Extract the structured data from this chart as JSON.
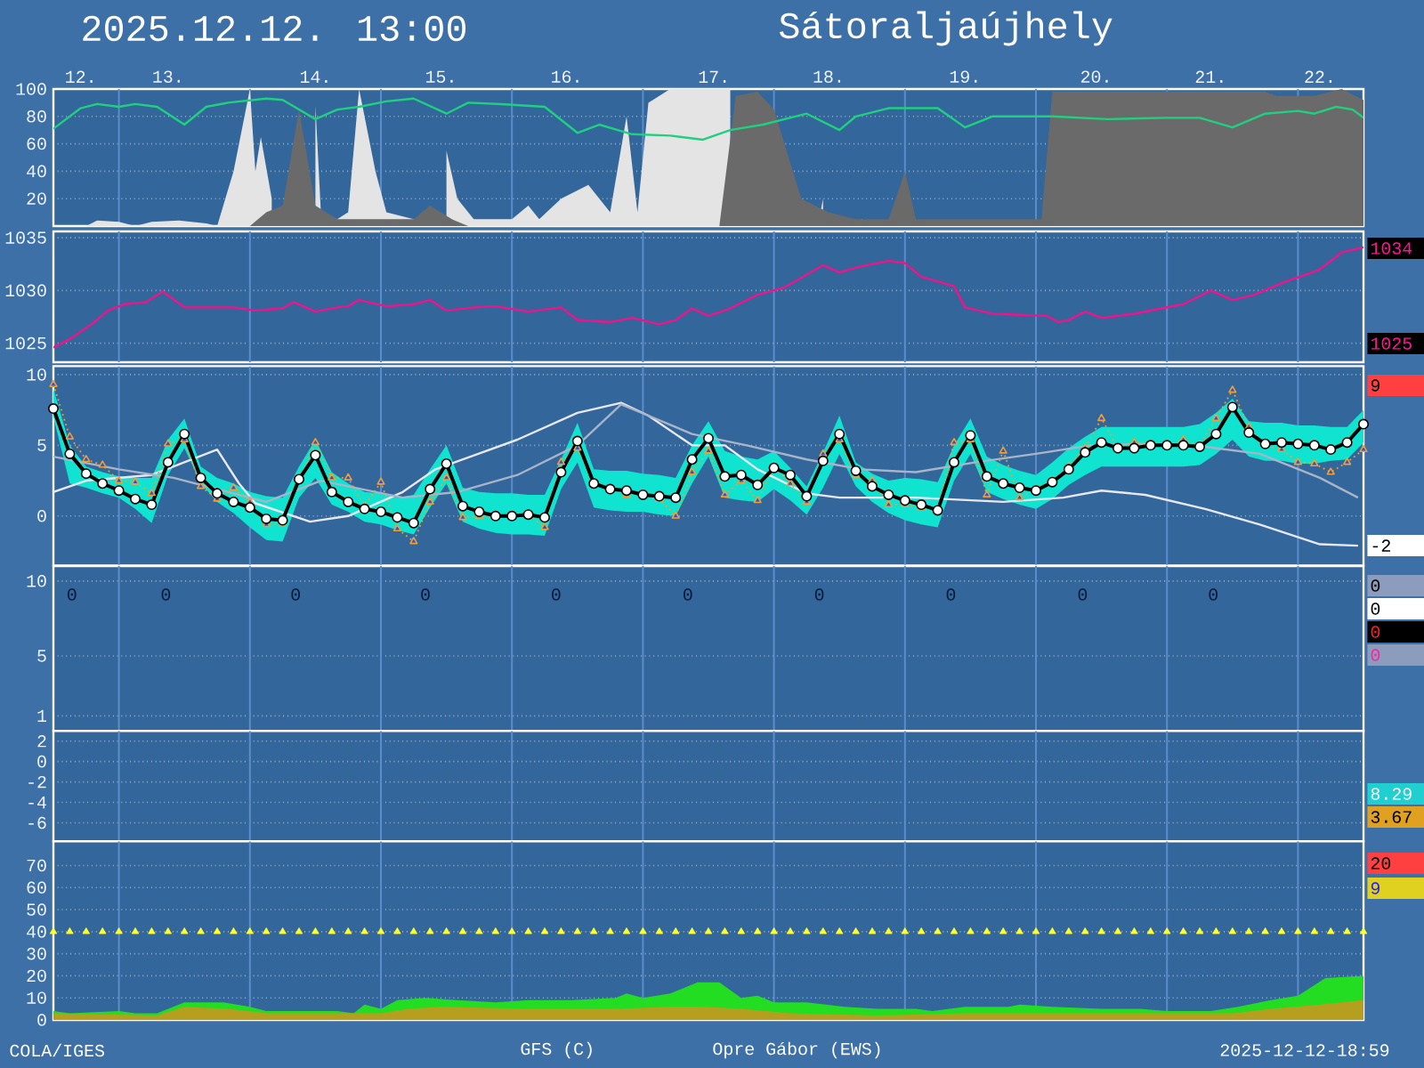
{
  "chart_data": [
    {
      "type": "line",
      "title": "2025.12.12. 13:00",
      "subtitle": "Sátoraljaújhely",
      "annotations": [
        "COLA/IGES",
        "GFS (C)",
        "Opre Gábor (EWS)",
        "2025-12-12-18:59"
      ],
      "xlim": [
        "2025-12-12T12:00",
        "2025-12-22T12:00"
      ],
      "xticks": [
        {
          "value": "2025-12-12T17:00",
          "label": "12."
        },
        {
          "value": "2025-12-13T09:00",
          "label": "13."
        },
        {
          "value": "2025-12-14T12:00",
          "label": "14."
        },
        {
          "value": "2025-12-15T11:00",
          "label": "15."
        },
        {
          "value": "2025-12-16T10:00",
          "label": "16."
        },
        {
          "value": "2025-12-17T13:00",
          "label": "17."
        },
        {
          "value": "2025-12-18T10:00",
          "label": "18."
        },
        {
          "value": "2025-12-19T11:00",
          "label": "19."
        },
        {
          "value": "2025-12-20T11:00",
          "label": "20."
        },
        {
          "value": "2025-12-21T08:00",
          "label": "21."
        },
        {
          "value": "2025-12-22T04:00",
          "label": "22."
        }
      ],
      "ylim": [
        0,
        100
      ],
      "yticks": [
        20,
        40,
        60,
        80,
        100
      ],
      "grid": "y",
      "ref_lines": [
        {
          "axis": "x",
          "value": "2025-12-13T00:00"
        },
        {
          "axis": "x",
          "value": "2025-12-14T00:00"
        },
        {
          "axis": "x",
          "value": "2025-12-15T00:00"
        },
        {
          "axis": "x",
          "value": "2025-12-16T00:00"
        },
        {
          "axis": "x",
          "value": "2025-12-17T00:00"
        },
        {
          "axis": "x",
          "value": "2025-12-18T00:00"
        },
        {
          "axis": "x",
          "value": "2025-12-19T00:00"
        },
        {
          "axis": "x",
          "value": "2025-12-20T00:00"
        },
        {
          "axis": "x",
          "value": "2025-12-21T00:00"
        },
        {
          "axis": "x",
          "value": "2025-12-22T00:00"
        }
      ],
      "series": [
        {
          "type": "area",
          "color": "#E4E4E4",
          "x": [
            "2025-12-12T12:00",
            "2025-12-12T18:00",
            "2025-12-12T20:00",
            "2025-12-13T00:00",
            "2025-12-13T03:00",
            "2025-12-13T06:00",
            "2025-12-13T11:00",
            "2025-12-13T16:00",
            "2025-12-13T18:00",
            "2025-12-13T21:00",
            "2025-12-14T00:00",
            "2025-12-14T01:00",
            "2025-12-14T02:00",
            "2025-12-14T04:00",
            "2025-12-14T06:00",
            "2025-12-14T09:00",
            "2025-12-14T12:00",
            "2025-12-14T13:00",
            "2025-12-14T16:00",
            "2025-12-14T18:00",
            "2025-12-14T20:00",
            "2025-12-14T23:00",
            "2025-12-15T01:00",
            "2025-12-15T06:00",
            "2025-12-15T09:00",
            "2025-12-15T12:00",
            "2025-12-15T14:00",
            "2025-12-15T17:00",
            "2025-12-16T00:00",
            "2025-12-16T03:00",
            "2025-12-16T05:00",
            "2025-12-16T09:00",
            "2025-12-16T14:00",
            "2025-12-16T18:00",
            "2025-12-16T21:00",
            "2025-12-16T23:00",
            "2025-12-17T01:00",
            "2025-12-17T05:00",
            "2025-12-17T16:00",
            "2025-12-17T17:00",
            "2025-12-17T22:00",
            "2025-12-18T08:00",
            "2025-12-18T09:00",
            "2025-12-18T11:00",
            "2025-12-18T16:00",
            "2025-12-18T19:00",
            "2025-12-22T12:00"
          ],
          "values": [
            0,
            0,
            4,
            3,
            0,
            3,
            4,
            2,
            0,
            40,
            100,
            40,
            65,
            20,
            null,
            null,
            88,
            10,
            5,
            10,
            100,
            40,
            10,
            5,
            null,
            55,
            20,
            5,
            5,
            15,
            5,
            20,
            30,
            10,
            80,
            10,
            90,
            100,
            100,
            null,
            0,
            0,
            20,
            null,
            5,
            0,
            0
          ]
        },
        {
          "type": "area",
          "color": "#6A6A6A",
          "x": [
            "2025-12-14T00:00",
            "2025-12-14T03:00",
            "2025-12-14T06:00",
            "2025-12-14T09:00",
            "2025-12-14T12:00",
            "2025-12-14T16:00",
            "2025-12-15T06:00",
            "2025-12-15T09:00",
            "2025-12-15T13:00",
            "2025-12-15T16:00",
            "2025-12-16T12:00",
            "2025-12-17T14:00",
            "2025-12-17T17:00",
            "2025-12-17T21:00",
            "2025-12-18T00:00",
            "2025-12-18T05:00",
            "2025-12-18T10:00",
            "2025-12-18T15:00",
            "2025-12-18T21:00",
            "2025-12-19T00:00",
            "2025-12-19T02:00",
            "2025-12-20T01:00",
            "2025-12-20T03:00",
            "2025-12-21T18:00",
            "2025-12-21T20:00",
            "2025-12-22T03:00",
            "2025-12-22T08:00",
            "2025-12-22T12:00"
          ],
          "values": [
            0,
            10,
            15,
            85,
            15,
            5,
            5,
            15,
            5,
            0,
            null,
            0,
            95,
            98,
            85,
            20,
            10,
            5,
            5,
            40,
            5,
            5,
            98,
            98,
            95,
            95,
            100,
            92
          ]
        },
        {
          "type": "line",
          "color": "#20D080",
          "x": [
            "2025-12-12T12:00",
            "2025-12-12T17:00",
            "2025-12-12T20:00",
            "2025-12-13T00:00",
            "2025-12-13T03:00",
            "2025-12-13T07:00",
            "2025-12-13T12:00",
            "2025-12-13T16:00",
            "2025-12-13T20:00",
            "2025-12-14T03:00",
            "2025-12-14T06:00",
            "2025-12-14T12:00",
            "2025-12-14T16:00",
            "2025-12-14T20:00",
            "2025-12-15T01:00",
            "2025-12-15T06:00",
            "2025-12-15T12:00",
            "2025-12-15T16:00",
            "2025-12-15T22:00",
            "2025-12-16T06:00",
            "2025-12-16T12:00",
            "2025-12-16T16:00",
            "2025-12-16T22:00",
            "2025-12-17T05:00",
            "2025-12-17T11:00",
            "2025-12-17T16:00",
            "2025-12-17T22:00",
            "2025-12-18T06:00",
            "2025-12-18T12:00",
            "2025-12-18T15:00",
            "2025-12-18T21:00",
            "2025-12-19T06:00",
            "2025-12-19T11:00",
            "2025-12-19T16:00",
            "2025-12-20T03:00",
            "2025-12-20T13:00",
            "2025-12-21T00:00",
            "2025-12-21T06:00",
            "2025-12-21T12:00",
            "2025-12-21T18:00",
            "2025-12-22T00:00",
            "2025-12-22T03:00",
            "2025-12-22T07:00",
            "2025-12-22T10:00",
            "2025-12-22T12:00"
          ],
          "values": [
            71,
            86,
            89,
            87,
            89,
            87,
            74,
            87,
            90,
            93,
            92,
            78,
            85,
            87,
            91,
            93,
            82,
            90,
            89,
            87,
            68,
            74,
            67,
            66,
            63,
            70,
            74,
            82,
            70,
            80,
            86,
            86,
            72,
            80,
            80,
            78,
            79,
            79,
            72,
            82,
            84,
            82,
            87,
            85,
            79
          ]
        }
      ]
    },
    {
      "type": "line",
      "xlim": [
        "2025-12-12T12:00",
        "2025-12-22T12:00"
      ],
      "tick_labels": "y",
      "ylim": [
        1023.2,
        1035.6
      ],
      "yticks": [
        1025,
        1030,
        1035
      ],
      "grid": "y",
      "ref_lines": [
        {
          "axis": "x",
          "value": "2025-12-13T00:00"
        },
        {
          "axis": "x",
          "value": "2025-12-14T00:00"
        },
        {
          "axis": "x",
          "value": "2025-12-15T00:00"
        },
        {
          "axis": "x",
          "value": "2025-12-16T00:00"
        },
        {
          "axis": "x",
          "value": "2025-12-17T00:00"
        },
        {
          "axis": "x",
          "value": "2025-12-18T00:00"
        },
        {
          "axis": "x",
          "value": "2025-12-19T00:00"
        },
        {
          "axis": "x",
          "value": "2025-12-20T00:00"
        },
        {
          "axis": "x",
          "value": "2025-12-21T00:00"
        },
        {
          "axis": "x",
          "value": "2025-12-22T00:00"
        }
      ],
      "annotations": [
        "1034",
        "1025"
      ],
      "series": [
        {
          "color": "#F0148C",
          "x": [
            "2025-12-12T12:00",
            "2025-12-12T15:00",
            "2025-12-12T19:00",
            "2025-12-12T22:00",
            "2025-12-13T01:00",
            "2025-12-13T05:00",
            "2025-12-13T08:00",
            "2025-12-13T12:00",
            "2025-12-13T21:00",
            "2025-12-14T01:00",
            "2025-12-14T06:00",
            "2025-12-14T08:00",
            "2025-12-14T12:00",
            "2025-12-14T16:00",
            "2025-12-14T18:00",
            "2025-12-14T20:00",
            "2025-12-15T01:00",
            "2025-12-15T06:00",
            "2025-12-15T09:00",
            "2025-12-15T12:00",
            "2025-12-15T17:00",
            "2025-12-15T21:00",
            "2025-12-16T03:00",
            "2025-12-16T09:00",
            "2025-12-16T12:00",
            "2025-12-16T18:00",
            "2025-12-16T22:00",
            "2025-12-17T03:00",
            "2025-12-17T06:00",
            "2025-12-17T09:00",
            "2025-12-17T12:00",
            "2025-12-17T16:00",
            "2025-12-17T21:00",
            "2025-12-18T02:00",
            "2025-12-18T09:00",
            "2025-12-18T12:00",
            "2025-12-18T16:00",
            "2025-12-18T21:00",
            "2025-12-19T00:00",
            "2025-12-19T03:00",
            "2025-12-19T09:00",
            "2025-12-19T11:00",
            "2025-12-19T16:00",
            "2025-12-19T21:00",
            "2025-12-20T02:00",
            "2025-12-20T04:00",
            "2025-12-20T06:00",
            "2025-12-20T09:00",
            "2025-12-20T12:00",
            "2025-12-20T18:00",
            "2025-12-20T23:00",
            "2025-12-21T03:00",
            "2025-12-21T08:00",
            "2025-12-21T12:00",
            "2025-12-21T16:00",
            "2025-12-21T22:00",
            "2025-12-22T02:00",
            "2025-12-22T04:00",
            "2025-12-22T08:00",
            "2025-12-22T12:00"
          ],
          "values": [
            1024.6,
            1025.4,
            1026.8,
            1028.1,
            1028.7,
            1028.9,
            1029.9,
            1028.4,
            1028.4,
            1028.1,
            1028.3,
            1028.9,
            1028.0,
            1028.4,
            1028.5,
            1029.1,
            1028.5,
            1028.7,
            1029.1,
            1028.1,
            1028.4,
            1028.5,
            1028.0,
            1028.4,
            1027.2,
            1027.0,
            1027.4,
            1026.8,
            1027.2,
            1028.3,
            1027.6,
            1028.3,
            1029.6,
            1030.3,
            1032.4,
            1031.7,
            1032.3,
            1032.8,
            1032.6,
            1031.3,
            1030.4,
            1028.4,
            1027.8,
            1027.7,
            1027.6,
            1027.0,
            1027.2,
            1028.0,
            1027.4,
            1027.8,
            1028.3,
            1028.7,
            1030.0,
            1029.1,
            1029.6,
            1030.9,
            1031.6,
            1032.0,
            1033.6,
            1034.1
          ]
        }
      ]
    },
    {
      "type": "line",
      "xlim": [
        "2025-12-12T12:00",
        "2025-12-22T12:00"
      ],
      "tick_labels": "y",
      "ylim": [
        -3.5,
        10.6
      ],
      "yticks": [
        0,
        5,
        10
      ],
      "grid": "y",
      "ref_lines": [
        {
          "axis": "x",
          "value": "2025-12-13T00:00"
        },
        {
          "axis": "x",
          "value": "2025-12-14T00:00"
        },
        {
          "axis": "x",
          "value": "2025-12-15T00:00"
        },
        {
          "axis": "x",
          "value": "2025-12-16T00:00"
        },
        {
          "axis": "x",
          "value": "2025-12-17T00:00"
        },
        {
          "axis": "x",
          "value": "2025-12-18T00:00"
        },
        {
          "axis": "x",
          "value": "2025-12-19T00:00"
        },
        {
          "axis": "x",
          "value": "2025-12-20T00:00"
        },
        {
          "axis": "x",
          "value": "2025-12-21T00:00"
        },
        {
          "axis": "x",
          "value": "2025-12-22T00:00"
        }
      ],
      "annotations": [
        "9",
        "-2"
      ],
      "x": [
        "2025-12-12T12:00",
        "2025-12-12T15:00",
        "2025-12-12T18:00",
        "2025-12-12T21:00",
        "2025-12-13T00:00",
        "2025-12-13T03:00",
        "2025-12-13T06:00",
        "2025-12-13T09:00",
        "2025-12-13T12:00",
        "2025-12-13T15:00",
        "2025-12-13T18:00",
        "2025-12-13T21:00",
        "2025-12-14T00:00",
        "2025-12-14T03:00",
        "2025-12-14T06:00",
        "2025-12-14T09:00",
        "2025-12-14T12:00",
        "2025-12-14T15:00",
        "2025-12-14T18:00",
        "2025-12-14T21:00",
        "2025-12-15T00:00",
        "2025-12-15T03:00",
        "2025-12-15T06:00",
        "2025-12-15T09:00",
        "2025-12-15T12:00",
        "2025-12-15T15:00",
        "2025-12-15T18:00",
        "2025-12-15T21:00",
        "2025-12-16T00:00",
        "2025-12-16T03:00",
        "2025-12-16T06:00",
        "2025-12-16T09:00",
        "2025-12-16T12:00",
        "2025-12-16T15:00",
        "2025-12-16T18:00",
        "2025-12-16T21:00",
        "2025-12-17T00:00",
        "2025-12-17T03:00",
        "2025-12-17T06:00",
        "2025-12-17T09:00",
        "2025-12-17T12:00",
        "2025-12-17T15:00",
        "2025-12-17T18:00",
        "2025-12-17T21:00",
        "2025-12-18T00:00",
        "2025-12-18T03:00",
        "2025-12-18T06:00",
        "2025-12-18T09:00",
        "2025-12-18T12:00",
        "2025-12-18T15:00",
        "2025-12-18T18:00",
        "2025-12-18T21:00",
        "2025-12-19T00:00",
        "2025-12-19T03:00",
        "2025-12-19T06:00",
        "2025-12-19T09:00",
        "2025-12-19T12:00",
        "2025-12-19T15:00",
        "2025-12-19T18:00",
        "2025-12-19T21:00",
        "2025-12-20T00:00",
        "2025-12-20T03:00",
        "2025-12-20T06:00",
        "2025-12-20T09:00",
        "2025-12-20T12:00",
        "2025-12-20T15:00",
        "2025-12-20T18:00",
        "2025-12-20T21:00",
        "2025-12-21T00:00",
        "2025-12-21T03:00",
        "2025-12-21T06:00",
        "2025-12-21T09:00",
        "2025-12-21T12:00",
        "2025-12-21T15:00",
        "2025-12-21T18:00",
        "2025-12-21T21:00",
        "2025-12-22T00:00",
        "2025-12-22T03:00",
        "2025-12-22T06:00",
        "2025-12-22T09:00",
        "2025-12-22T12:00"
      ],
      "series": [
        {
          "color": "#E8E8F0",
          "x": [
            "2025-12-12T12:00",
            "2025-12-12T18:00",
            "2025-12-13T06:00",
            "2025-12-13T18:00",
            "2025-12-13T22:00",
            "2025-12-14T01:00",
            "2025-12-14T11:00",
            "2025-12-14T18:00",
            "2025-12-15T04:00",
            "2025-12-15T10:00",
            "2025-12-16T01:00",
            "2025-12-16T12:00",
            "2025-12-16T20:00",
            "2025-12-17T01:00",
            "2025-12-17T09:00",
            "2025-12-17T15:00",
            "2025-12-17T21:00",
            "2025-12-18T06:00",
            "2025-12-18T12:00",
            "2025-12-19T02:00",
            "2025-12-19T18:00",
            "2025-12-20T05:00",
            "2025-12-20T12:00",
            "2025-12-20T20:00",
            "2025-12-21T07:00",
            "2025-12-21T17:00",
            "2025-12-22T04:00",
            "2025-12-22T11:00"
          ],
          "values": [
            1.7,
            2.5,
            2.9,
            4.7,
            2.3,
            0.9,
            -0.4,
            0.0,
            1.7,
            3.3,
            5.4,
            7.3,
            8.0,
            7.1,
            5.0,
            5.0,
            3.3,
            1.6,
            1.3,
            1.3,
            1.0,
            1.3,
            1.8,
            1.5,
            0.5,
            -0.6,
            -2.0,
            -2.1
          ]
        },
        {
          "color": "#A8B4C8",
          "x": [
            "2025-12-12T12:00",
            "2025-12-13T00:00",
            "2025-12-13T10:00",
            "2025-12-14T03:00",
            "2025-12-14T13:00",
            "2025-12-15T04:00",
            "2025-12-15T14:00",
            "2025-12-16T01:00",
            "2025-12-16T12:00",
            "2025-12-16T20:00",
            "2025-12-17T01:00",
            "2025-12-17T09:00",
            "2025-12-17T19:00",
            "2025-12-18T06:00",
            "2025-12-18T16:00",
            "2025-12-19T02:00",
            "2025-12-19T13:00",
            "2025-12-20T00:00",
            "2025-12-20T10:00",
            "2025-12-20T20:00",
            "2025-12-21T07:00",
            "2025-12-21T17:00",
            "2025-12-22T04:00",
            "2025-12-22T11:00"
          ],
          "values": [
            4.2,
            3.3,
            2.7,
            1.0,
            2.5,
            1.3,
            1.7,
            2.9,
            5.0,
            7.9,
            7.1,
            5.8,
            5.0,
            4.0,
            3.3,
            3.1,
            3.8,
            4.4,
            5.0,
            5.1,
            4.9,
            4.4,
            2.7,
            1.3
          ]
        },
        {
          "color": "#F0A030",
          "marker": "triangle",
          "line_style": "dotted",
          "values": [
            9.3,
            5.6,
            4.0,
            3.6,
            2.5,
            2.4,
            1.6,
            5.1,
            5.4,
            2.1,
            1.2,
            2.0,
            1.0,
            -0.6,
            -0.5,
            2.6,
            5.2,
            2.7,
            2.7,
            0.7,
            2.4,
            -0.9,
            -1.8,
            1.0,
            2.7,
            -0.1,
            0.0,
            0.0,
            0.1,
            0.1,
            -0.8,
            3.8,
            4.8,
            2.2,
            2.0,
            1.5,
            1.6,
            1.2,
            0.0,
            3.1,
            4.6,
            1.5,
            2.5,
            1.1,
            3.5,
            2.3,
            1.0,
            4.4,
            5.4,
            2.9,
            2.5,
            0.8,
            0.8,
            0.6,
            0.5,
            5.2,
            5.4,
            1.5,
            4.6,
            1.3,
            1.9,
            2.5,
            3.5,
            4.8,
            6.9,
            4.8,
            5.2,
            5.1,
            5.0,
            5.4,
            5.0,
            6.9,
            8.9,
            6.3,
            5.0,
            4.7,
            3.8,
            3.7,
            3.1,
            3.8,
            4.7
          ]
        },
        {
          "color": "#000000",
          "marker": "circle",
          "values": [
            7.6,
            4.4,
            3.0,
            2.3,
            1.8,
            1.2,
            0.8,
            3.8,
            5.8,
            2.7,
            1.6,
            1.0,
            0.6,
            -0.2,
            -0.3,
            2.6,
            4.3,
            1.7,
            1.0,
            0.5,
            0.3,
            -0.1,
            -0.5,
            1.9,
            3.7,
            0.7,
            0.3,
            0.0,
            0.0,
            0.1,
            -0.1,
            3.1,
            5.3,
            2.3,
            1.9,
            1.8,
            1.5,
            1.4,
            1.3,
            4.0,
            5.5,
            2.8,
            2.9,
            2.2,
            3.4,
            2.9,
            1.4,
            3.9,
            5.8,
            3.2,
            2.1,
            1.5,
            1.1,
            0.8,
            0.4,
            3.8,
            5.7,
            2.8,
            2.3,
            2.0,
            1.8,
            2.4,
            3.3,
            4.5,
            5.2,
            4.8,
            4.8,
            5.0,
            5.0,
            5.0,
            4.9,
            5.8,
            7.7,
            5.9,
            5.1,
            5.2,
            5.1,
            5.0,
            4.7,
            5.2,
            6.5
          ],
          "lower": [
            7.0,
            2.3,
            2.0,
            1.6,
            1.3,
            0.5,
            -0.5,
            2.9,
            4.8,
            2.3,
            1.0,
            0.2,
            -0.8,
            -1.7,
            -1.8,
            1.3,
            2.7,
            0.8,
            0.3,
            -0.4,
            -0.6,
            -1.0,
            -1.3,
            0.6,
            2.3,
            -0.4,
            -0.9,
            -1.2,
            -1.3,
            -1.3,
            -1.4,
            1.9,
            3.8,
            0.6,
            0.4,
            0.3,
            0.3,
            0.1,
            0.0,
            2.3,
            4.2,
            1.3,
            1.1,
            1.0,
            1.9,
            1.1,
            0.1,
            2.0,
            4.4,
            2.1,
            1.0,
            0.2,
            -0.3,
            -0.6,
            -0.8,
            2.5,
            4.4,
            1.7,
            1.2,
            0.8,
            0.5,
            1.2,
            2.2,
            2.9,
            3.5,
            3.5,
            3.5,
            3.5,
            3.5,
            3.5,
            3.6,
            4.4,
            5.4,
            4.2,
            3.9,
            3.9,
            3.7,
            3.7,
            3.9,
            4.0,
            5.2
          ],
          "upper": [
            9.0,
            5.0,
            3.5,
            3.1,
            2.8,
            2.7,
            2.7,
            5.4,
            6.9,
            3.5,
            2.7,
            2.3,
            1.7,
            1.4,
            1.3,
            3.5,
            5.4,
            3.1,
            2.3,
            1.7,
            1.6,
            1.3,
            1.5,
            3.3,
            5.0,
            2.0,
            1.7,
            1.6,
            1.6,
            1.5,
            1.5,
            4.0,
            6.6,
            3.3,
            3.2,
            3.2,
            3.0,
            2.9,
            2.7,
            5.0,
            6.7,
            4.6,
            4.2,
            4.0,
            4.6,
            3.4,
            2.1,
            4.5,
            7.1,
            3.8,
            3.0,
            2.5,
            2.7,
            2.6,
            2.4,
            5.0,
            6.9,
            4.2,
            3.6,
            3.2,
            2.9,
            3.8,
            4.8,
            5.6,
            6.3,
            6.3,
            6.3,
            6.3,
            6.3,
            6.3,
            6.5,
            7.3,
            8.3,
            6.7,
            6.6,
            6.6,
            6.4,
            6.4,
            6.3,
            6.3,
            7.5
          ]
        }
      ]
    },
    {
      "type": "bar",
      "xlim": [
        "2025-12-12T12:00",
        "2025-12-22T12:00"
      ],
      "tick_labels": "y",
      "ylim": [
        0,
        11
      ],
      "yticks": [
        1,
        5,
        10
      ],
      "grid": "y",
      "ref_lines": [
        {
          "axis": "x",
          "value": "2025-12-13T00:00"
        },
        {
          "axis": "x",
          "value": "2025-12-14T00:00"
        },
        {
          "axis": "x",
          "value": "2025-12-15T00:00"
        },
        {
          "axis": "x",
          "value": "2025-12-16T00:00"
        },
        {
          "axis": "x",
          "value": "2025-12-17T00:00"
        },
        {
          "axis": "x",
          "value": "2025-12-18T00:00"
        },
        {
          "axis": "x",
          "value": "2025-12-19T00:00"
        },
        {
          "axis": "x",
          "value": "2025-12-20T00:00"
        },
        {
          "axis": "x",
          "value": "2025-12-21T00:00"
        },
        {
          "axis": "x",
          "value": "2025-12-22T00:00"
        }
      ],
      "annotations": [
        "0",
        "0",
        "0",
        "0",
        "0",
        "0",
        "0",
        "0",
        "0",
        "0",
        "0",
        "0",
        "0",
        "0"
      ]
    },
    {
      "type": "line",
      "xlim": [
        "2025-12-12T12:00",
        "2025-12-22T12:00"
      ],
      "tick_labels": "y",
      "ylim": [
        -7.8,
        3
      ],
      "yticks": [
        -6,
        -4,
        -2,
        0,
        2
      ],
      "grid": "y",
      "ref_lines": [
        {
          "axis": "x",
          "value": "2025-12-13T00:00"
        },
        {
          "axis": "x",
          "value": "2025-12-14T00:00"
        },
        {
          "axis": "x",
          "value": "2025-12-15T00:00"
        },
        {
          "axis": "x",
          "value": "2025-12-16T00:00"
        },
        {
          "axis": "x",
          "value": "2025-12-17T00:00"
        },
        {
          "axis": "x",
          "value": "2025-12-18T00:00"
        },
        {
          "axis": "x",
          "value": "2025-12-19T00:00"
        },
        {
          "axis": "x",
          "value": "2025-12-20T00:00"
        },
        {
          "axis": "x",
          "value": "2025-12-21T00:00"
        },
        {
          "axis": "x",
          "value": "2025-12-22T00:00"
        }
      ],
      "annotations": [
        "8.29",
        "3.67"
      ]
    },
    {
      "type": "area",
      "xlim": [
        "2025-12-12T12:00",
        "2025-12-22T12:00"
      ],
      "tick_labels": "y",
      "ylim": [
        0,
        81
      ],
      "yticks": [
        0,
        10,
        20,
        30,
        40,
        50,
        60,
        70
      ],
      "grid": "y",
      "ref_lines": [
        {
          "axis": "x",
          "value": "2025-12-13T00:00"
        },
        {
          "axis": "x",
          "value": "2025-12-14T00:00"
        },
        {
          "axis": "x",
          "value": "2025-12-15T00:00"
        },
        {
          "axis": "x",
          "value": "2025-12-16T00:00"
        },
        {
          "axis": "x",
          "value": "2025-12-17T00:00"
        },
        {
          "axis": "x",
          "value": "2025-12-18T00:00"
        },
        {
          "axis": "x",
          "value": "2025-12-19T00:00"
        },
        {
          "axis": "x",
          "value": "2025-12-20T00:00"
        },
        {
          "axis": "x",
          "value": "2025-12-21T00:00"
        },
        {
          "axis": "x",
          "value": "2025-12-22T00:00"
        }
      ],
      "annotations": [
        "20",
        "9"
      ],
      "x": [
        "2025-12-12T12:00",
        "2025-12-12T15:00",
        "2025-12-12T18:00",
        "2025-12-12T21:00",
        "2025-12-13T00:00",
        "2025-12-13T03:00",
        "2025-12-13T06:00",
        "2025-12-13T09:00",
        "2025-12-13T12:00",
        "2025-12-13T15:00",
        "2025-12-13T18:00",
        "2025-12-13T21:00",
        "2025-12-14T00:00",
        "2025-12-14T03:00",
        "2025-12-14T06:00",
        "2025-12-14T09:00",
        "2025-12-14T12:00",
        "2025-12-14T15:00",
        "2025-12-14T18:00",
        "2025-12-14T21:00",
        "2025-12-15T00:00",
        "2025-12-15T03:00",
        "2025-12-15T06:00",
        "2025-12-15T09:00",
        "2025-12-15T12:00",
        "2025-12-15T15:00",
        "2025-12-15T18:00",
        "2025-12-15T21:00",
        "2025-12-16T00:00",
        "2025-12-16T03:00",
        "2025-12-16T06:00",
        "2025-12-16T09:00",
        "2025-12-16T12:00",
        "2025-12-16T15:00",
        "2025-12-16T18:00",
        "2025-12-16T21:00",
        "2025-12-17T00:00",
        "2025-12-17T03:00",
        "2025-12-17T06:00",
        "2025-12-17T09:00",
        "2025-12-17T12:00",
        "2025-12-17T15:00",
        "2025-12-17T18:00",
        "2025-12-17T21:00",
        "2025-12-18T00:00",
        "2025-12-18T03:00",
        "2025-12-18T06:00",
        "2025-12-18T09:00",
        "2025-12-18T12:00",
        "2025-12-18T15:00",
        "2025-12-18T18:00",
        "2025-12-18T21:00",
        "2025-12-19T00:00",
        "2025-12-19T03:00",
        "2025-12-19T06:00",
        "2025-12-19T09:00",
        "2025-12-19T12:00",
        "2025-12-19T15:00",
        "2025-12-19T18:00",
        "2025-12-19T21:00",
        "2025-12-20T00:00",
        "2025-12-20T03:00",
        "2025-12-20T06:00",
        "2025-12-20T09:00",
        "2025-12-20T12:00",
        "2025-12-20T15:00",
        "2025-12-20T18:00",
        "2025-12-20T21:00",
        "2025-12-21T00:00",
        "2025-12-21T03:00",
        "2025-12-21T06:00",
        "2025-12-21T09:00",
        "2025-12-21T12:00",
        "2025-12-21T15:00",
        "2025-12-21T18:00",
        "2025-12-21T21:00",
        "2025-12-22T00:00",
        "2025-12-22T03:00",
        "2025-12-22T06:00",
        "2025-12-22T09:00",
        "2025-12-22T12:00"
      ],
      "series": [
        {
          "color": "#22DD22",
          "x": [
            "2025-12-12T12:00",
            "2025-12-12T15:00",
            "2025-12-13T00:00",
            "2025-12-13T03:00",
            "2025-12-13T07:00",
            "2025-12-13T12:00",
            "2025-12-13T19:00",
            "2025-12-14T00:00",
            "2025-12-14T03:00",
            "2025-12-14T16:00",
            "2025-12-14T19:00",
            "2025-12-14T21:00",
            "2025-12-15T00:00",
            "2025-12-15T03:00",
            "2025-12-15T08:00",
            "2025-12-15T14:00",
            "2025-12-15T21:00",
            "2025-12-16T03:00",
            "2025-12-16T11:00",
            "2025-12-16T19:00",
            "2025-12-16T21:00",
            "2025-12-17T00:00",
            "2025-12-17T05:00",
            "2025-12-17T10:00",
            "2025-12-17T14:00",
            "2025-12-17T18:00",
            "2025-12-17T21:00",
            "2025-12-18T00:00",
            "2025-12-18T06:00",
            "2025-12-18T13:00",
            "2025-12-18T19:00",
            "2025-12-19T02:00",
            "2025-12-19T05:00",
            "2025-12-19T11:00",
            "2025-12-19T19:00",
            "2025-12-19T21:00",
            "2025-12-20T03:00",
            "2025-12-20T12:00",
            "2025-12-20T19:00",
            "2025-12-21T00:00",
            "2025-12-21T08:00",
            "2025-12-21T13:00",
            "2025-12-21T19:00",
            "2025-12-22T00:00",
            "2025-12-22T05:00",
            "2025-12-22T12:00"
          ],
          "values": [
            4,
            3,
            4,
            3,
            3,
            8,
            8,
            6,
            4,
            4,
            3,
            7,
            5,
            9,
            10,
            9,
            8,
            9,
            9,
            10,
            12,
            10,
            12,
            17,
            17,
            10,
            11,
            8,
            8,
            6,
            5,
            5,
            4,
            6,
            6,
            7,
            6,
            5,
            5,
            4,
            4,
            6,
            9,
            11,
            19,
            20
          ]
        },
        {
          "color": "#B4A01E",
          "x": [
            "2025-12-12T12:00",
            "2025-12-13T07:00",
            "2025-12-13T12:00",
            "2025-12-13T20:00",
            "2025-12-14T03:00",
            "2025-12-15T00:00",
            "2025-12-15T05:00",
            "2025-12-15T11:00",
            "2025-12-16T03:00",
            "2025-12-16T19:00",
            "2025-12-17T05:00",
            "2025-12-17T11:00",
            "2025-12-17T18:00",
            "2025-12-18T03:00",
            "2025-12-18T19:00",
            "2025-12-19T11:00",
            "2025-12-21T12:00",
            "2025-12-21T19:00",
            "2025-12-22T04:00",
            "2025-12-22T12:00"
          ],
          "values": [
            3,
            2,
            6,
            5,
            3,
            3,
            5,
            6,
            5,
            5,
            6,
            6,
            5,
            3,
            2,
            3,
            3,
            5,
            7,
            9
          ]
        },
        {
          "type": "scatter",
          "color": "#FFFF30",
          "marker": "triangle",
          "values": [
            40,
            40,
            40,
            40,
            40,
            40,
            40,
            40,
            40,
            40,
            40,
            40,
            40,
            40,
            40,
            40,
            40,
            40,
            40,
            40,
            40,
            40,
            40,
            40,
            40,
            40,
            40,
            40,
            40,
            40,
            40,
            40,
            40,
            40,
            40,
            40,
            40,
            40,
            40,
            40,
            40,
            40,
            40,
            40,
            40,
            40,
            40,
            40,
            40,
            40,
            40,
            40,
            40,
            40,
            40,
            40,
            40,
            40,
            40,
            40,
            40,
            40,
            40,
            40,
            40,
            40,
            40,
            40,
            40,
            40,
            40,
            40,
            40,
            40,
            40,
            40,
            40,
            40,
            40,
            40,
            40
          ]
        }
      ]
    }
  ]
}
